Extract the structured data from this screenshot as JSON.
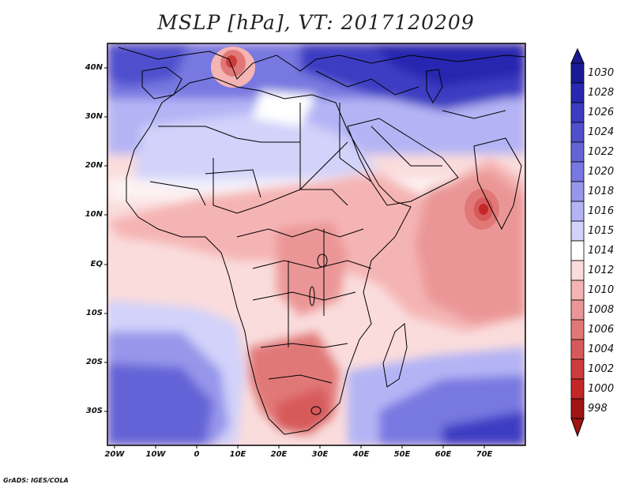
{
  "title": "MSLP [hPa], VT: 2017120209",
  "credit": "GrADS: IGES/COLA",
  "lat_labels": [
    "40N",
    "30N",
    "20N",
    "10N",
    "EQ",
    "10S",
    "20S",
    "30S"
  ],
  "lon_labels": [
    "20W",
    "10W",
    "0",
    "10E",
    "20E",
    "30E",
    "40E",
    "50E",
    "60E",
    "70E"
  ],
  "colorbar": {
    "levels": [
      "1030",
      "1028",
      "1026",
      "1024",
      "1022",
      "1020",
      "1018",
      "1016",
      "1015",
      "1014",
      "1012",
      "1010",
      "1008",
      "1006",
      "1004",
      "1002",
      "1000",
      "998"
    ],
    "colors": [
      "#1a1a96",
      "#2828b0",
      "#3c3cc3",
      "#5050cd",
      "#6464d7",
      "#7878e1",
      "#9696eb",
      "#b4b4f5",
      "#d2d2fa",
      "#ffffff",
      "#fadcdc",
      "#f5b4b4",
      "#eb9696",
      "#e17878",
      "#d75a5a",
      "#cd3c3c",
      "#c32828",
      "#a01414"
    ]
  },
  "pressure_field": {
    "variable": "Mean sea level pressure",
    "units": "hPa",
    "valid_time": "2017120209",
    "high_regions": [
      "Mediterranean/Europe",
      "South Atlantic",
      "South Indian Ocean"
    ],
    "low_regions": [
      "Italy",
      "Arabian Sea (~10N 70E)",
      "Southern Africa"
    ]
  }
}
